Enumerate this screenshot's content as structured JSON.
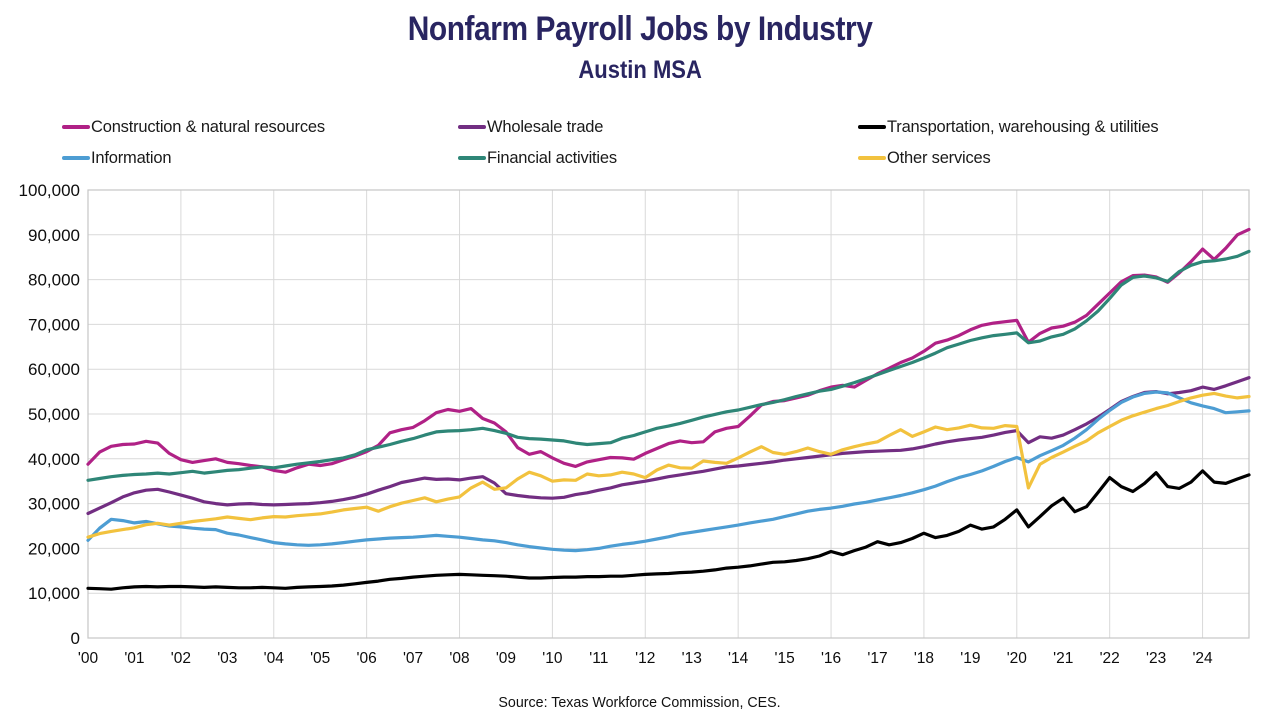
{
  "header": {
    "title": "Nonfarm Payroll Jobs by Industry",
    "subtitle": "Austin MSA"
  },
  "source": "Source: Texas Workforce Commission, CES.",
  "legend": {
    "items": [
      {
        "label": "Construction & natural resources",
        "color": "#b02186"
      },
      {
        "label": "Wholesale trade",
        "color": "#722e82"
      },
      {
        "label": "Transportation, warehousing & utilities",
        "color": "#000000"
      },
      {
        "label": "Information",
        "color": "#4d9dd3"
      },
      {
        "label": "Financial activities",
        "color": "#2e8677"
      },
      {
        "label": "Other services",
        "color": "#f2c23e"
      }
    ]
  },
  "chart_data": {
    "type": "line",
    "title": "Nonfarm Payroll Jobs by Industry",
    "subtitle": "Austin MSA",
    "xlabel": "",
    "ylabel": "",
    "grid": true,
    "legend_position": "top",
    "x_start": 2000,
    "x_step": 0.25,
    "xlim": [
      2000,
      2025
    ],
    "ylim": [
      0,
      100000
    ],
    "y_ticks": [
      {
        "value": 0,
        "label": "0"
      },
      {
        "value": 10000,
        "label": "10,000"
      },
      {
        "value": 20000,
        "label": "20,000"
      },
      {
        "value": 30000,
        "label": "30,000"
      },
      {
        "value": 40000,
        "label": "40,000"
      },
      {
        "value": 50000,
        "label": "50,000"
      },
      {
        "value": 60000,
        "label": "60,000"
      },
      {
        "value": 70000,
        "label": "70,000"
      },
      {
        "value": 80000,
        "label": "80,000"
      },
      {
        "value": 90000,
        "label": "90,000"
      },
      {
        "value": 100000,
        "label": "100,000"
      }
    ],
    "x_ticks": [
      {
        "value": 2000,
        "label": "'00"
      },
      {
        "value": 2001,
        "label": "'01"
      },
      {
        "value": 2002,
        "label": "'02"
      },
      {
        "value": 2003,
        "label": "'03"
      },
      {
        "value": 2004,
        "label": "'04"
      },
      {
        "value": 2005,
        "label": "'05"
      },
      {
        "value": 2006,
        "label": "'06"
      },
      {
        "value": 2007,
        "label": "'07"
      },
      {
        "value": 2008,
        "label": "'08"
      },
      {
        "value": 2009,
        "label": "'09"
      },
      {
        "value": 2010,
        "label": "'10"
      },
      {
        "value": 2011,
        "label": "'11"
      },
      {
        "value": 2012,
        "label": "'12"
      },
      {
        "value": 2013,
        "label": "'13"
      },
      {
        "value": 2014,
        "label": "'14"
      },
      {
        "value": 2015,
        "label": "'15"
      },
      {
        "value": 2016,
        "label": "'16"
      },
      {
        "value": 2017,
        "label": "'17"
      },
      {
        "value": 2018,
        "label": "'18"
      },
      {
        "value": 2019,
        "label": "'19"
      },
      {
        "value": 2020,
        "label": "'20"
      },
      {
        "value": 2021,
        "label": "'21"
      },
      {
        "value": 2022,
        "label": "'22"
      },
      {
        "value": 2023,
        "label": "'23"
      },
      {
        "value": 2024,
        "label": "'24"
      }
    ],
    "x_grid_every": 2,
    "series": [
      {
        "name": "Construction & natural resources",
        "color": "#b02186",
        "values": [
          38800,
          41500,
          42800,
          43200,
          43300,
          43900,
          43500,
          41200,
          39800,
          39200,
          39600,
          40000,
          39200,
          38900,
          38500,
          38200,
          37400,
          37000,
          38000,
          38800,
          38500,
          38900,
          39800,
          40600,
          41600,
          43000,
          45800,
          46500,
          47000,
          48500,
          50300,
          51000,
          50600,
          51200,
          49000,
          48000,
          46000,
          42500,
          41000,
          41600,
          40200,
          39000,
          38300,
          39300,
          39800,
          40300,
          40200,
          39900,
          41200,
          42300,
          43400,
          44000,
          43600,
          43800,
          46000,
          46800,
          47200,
          49500,
          52000,
          52800,
          53000,
          53600,
          54200,
          55200,
          56000,
          56400,
          56000,
          57500,
          59000,
          60200,
          61500,
          62500,
          64000,
          65800,
          66500,
          67500,
          68800,
          69800,
          70300,
          70600,
          70900,
          66000,
          68000,
          69200,
          69600,
          70500,
          72000,
          74500,
          77000,
          79500,
          80900,
          81000,
          80600,
          79400,
          81500,
          84000,
          86800,
          84500,
          87000,
          90000,
          91200
        ]
      },
      {
        "name": "Wholesale trade",
        "color": "#722e82",
        "values": [
          27800,
          29000,
          30200,
          31500,
          32400,
          33000,
          33200,
          32600,
          31900,
          31200,
          30400,
          30000,
          29700,
          29900,
          30000,
          29800,
          29700,
          29800,
          29900,
          30000,
          30200,
          30500,
          30900,
          31400,
          32100,
          33000,
          33800,
          34700,
          35200,
          35700,
          35400,
          35500,
          35300,
          35700,
          36000,
          34600,
          32200,
          31800,
          31500,
          31300,
          31200,
          31400,
          32000,
          32400,
          33000,
          33500,
          34200,
          34600,
          35000,
          35500,
          36000,
          36400,
          36800,
          37200,
          37700,
          38200,
          38400,
          38700,
          39000,
          39300,
          39700,
          40000,
          40300,
          40600,
          40900,
          41200,
          41400,
          41600,
          41700,
          41800,
          41900,
          42200,
          42700,
          43300,
          43800,
          44200,
          44500,
          44800,
          45300,
          45900,
          46300,
          43600,
          44900,
          44600,
          45300,
          46500,
          47800,
          49300,
          51000,
          52800,
          53900,
          54800,
          55000,
          54500,
          54800,
          55200,
          56000,
          55500,
          56300,
          57200,
          58100
        ]
      },
      {
        "name": "Transportation, warehousing & utilities",
        "color": "#000000",
        "values": [
          11100,
          11000,
          10900,
          11200,
          11400,
          11500,
          11400,
          11500,
          11500,
          11400,
          11300,
          11400,
          11300,
          11200,
          11200,
          11300,
          11200,
          11100,
          11300,
          11400,
          11500,
          11600,
          11800,
          12100,
          12400,
          12700,
          13100,
          13300,
          13600,
          13800,
          14000,
          14100,
          14200,
          14100,
          14000,
          13900,
          13800,
          13600,
          13400,
          13400,
          13500,
          13600,
          13600,
          13700,
          13700,
          13800,
          13800,
          14000,
          14200,
          14300,
          14400,
          14600,
          14700,
          14900,
          15200,
          15600,
          15800,
          16100,
          16500,
          16900,
          17000,
          17300,
          17700,
          18300,
          19300,
          18600,
          19500,
          20300,
          21500,
          20800,
          21300,
          22200,
          23400,
          22400,
          22900,
          23800,
          25200,
          24300,
          24800,
          26500,
          28600,
          24800,
          27100,
          29500,
          31200,
          28200,
          29300,
          32500,
          35800,
          33800,
          32700,
          34500,
          36900,
          33800,
          33400,
          34800,
          37300,
          34800,
          34500,
          35500,
          36400
        ]
      },
      {
        "name": "Information",
        "color": "#4d9dd3",
        "values": [
          21800,
          24500,
          26500,
          26200,
          25700,
          26000,
          25500,
          25000,
          24800,
          24500,
          24300,
          24200,
          23400,
          23000,
          22400,
          21900,
          21300,
          21000,
          20800,
          20700,
          20800,
          21000,
          21300,
          21600,
          21900,
          22100,
          22300,
          22400,
          22500,
          22700,
          22900,
          22700,
          22500,
          22200,
          21900,
          21700,
          21300,
          20800,
          20400,
          20100,
          19800,
          19600,
          19500,
          19700,
          20000,
          20500,
          20900,
          21200,
          21600,
          22100,
          22600,
          23200,
          23600,
          24000,
          24400,
          24800,
          25200,
          25700,
          26100,
          26500,
          27100,
          27700,
          28300,
          28700,
          29000,
          29400,
          29900,
          30300,
          30800,
          31300,
          31800,
          32400,
          33100,
          33900,
          34900,
          35800,
          36500,
          37300,
          38300,
          39400,
          40300,
          39300,
          40700,
          41800,
          43000,
          44600,
          46500,
          48800,
          50800,
          52600,
          53800,
          54600,
          54900,
          54700,
          53600,
          52500,
          51800,
          51200,
          50300,
          50500,
          50700
        ]
      },
      {
        "name": "Financial activities",
        "color": "#2e8677",
        "values": [
          35200,
          35600,
          36000,
          36300,
          36500,
          36600,
          36800,
          36600,
          36900,
          37200,
          36800,
          37100,
          37400,
          37600,
          37900,
          38200,
          38000,
          38400,
          38800,
          39100,
          39400,
          39800,
          40200,
          40900,
          42000,
          42600,
          43200,
          43900,
          44500,
          45300,
          46000,
          46200,
          46300,
          46500,
          46800,
          46300,
          45700,
          44800,
          44500,
          44400,
          44200,
          44000,
          43500,
          43200,
          43400,
          43600,
          44600,
          45200,
          46000,
          46800,
          47300,
          47900,
          48600,
          49300,
          49900,
          50500,
          50900,
          51500,
          52100,
          52600,
          53200,
          53900,
          54500,
          55100,
          55500,
          56200,
          57000,
          57900,
          58800,
          59700,
          60600,
          61500,
          62500,
          63600,
          64800,
          65600,
          66400,
          67000,
          67500,
          67800,
          68100,
          65900,
          66300,
          67200,
          67800,
          69000,
          70800,
          73000,
          75800,
          78800,
          80500,
          80800,
          80400,
          79600,
          81800,
          83200,
          84000,
          84200,
          84600,
          85200,
          86300
        ]
      },
      {
        "name": "Other services",
        "color": "#f2c23e",
        "values": [
          22500,
          23300,
          23800,
          24200,
          24600,
          25300,
          25600,
          25200,
          25600,
          26000,
          26300,
          26600,
          27000,
          26700,
          26400,
          26800,
          27100,
          27000,
          27300,
          27500,
          27700,
          28100,
          28600,
          28900,
          29200,
          28300,
          29300,
          30100,
          30700,
          31300,
          30400,
          31000,
          31500,
          33500,
          34800,
          33200,
          33500,
          35500,
          37000,
          36200,
          35000,
          35300,
          35200,
          36600,
          36200,
          36400,
          37000,
          36600,
          35800,
          37500,
          38600,
          38000,
          37900,
          39500,
          39200,
          39000,
          40200,
          41500,
          42700,
          41400,
          41000,
          41600,
          42400,
          41600,
          41000,
          42000,
          42700,
          43300,
          43800,
          45200,
          46500,
          45000,
          46000,
          47100,
          46500,
          46900,
          47500,
          46900,
          46800,
          47400,
          47200,
          33500,
          38800,
          40300,
          41500,
          42800,
          44000,
          45800,
          47200,
          48600,
          49600,
          50400,
          51200,
          51900,
          52800,
          53600,
          54200,
          54600,
          54000,
          53600,
          53900
        ]
      }
    ]
  },
  "colors": {
    "title": "#292561",
    "grid": "#d9d9d9",
    "border": "#c6c6c6",
    "tick_text": "#0d0d0d"
  }
}
